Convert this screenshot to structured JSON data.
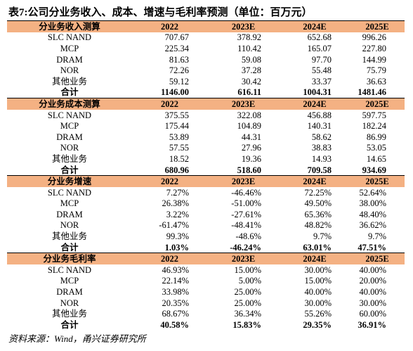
{
  "header": {
    "title": "表7:公司分业务收入、成本、增速与毛利率预测（单位：百万元）"
  },
  "table": {
    "sections": [
      {
        "title": "分业务收入测算",
        "columns": [
          "2022",
          "2023E",
          "2024E",
          "2025E"
        ],
        "rows": [
          [
            "SLC NAND",
            "707.67",
            "378.92",
            "652.68",
            "996.26"
          ],
          [
            "MCP",
            "225.34",
            "110.42",
            "165.07",
            "227.80"
          ],
          [
            "DRAM",
            "81.63",
            "59.08",
            "97.70",
            "144.99"
          ],
          [
            "NOR",
            "72.26",
            "37.28",
            "55.48",
            "75.79"
          ],
          [
            "其他业务",
            "59.12",
            "30.42",
            "33.37",
            "36.63"
          ],
          [
            "合计",
            "1146.00",
            "616.11",
            "1004.31",
            "1481.46"
          ]
        ]
      },
      {
        "title": "分业务成本测算",
        "columns": [
          "2022",
          "2023E",
          "2024E",
          "2025E"
        ],
        "rows": [
          [
            "SLC NAND",
            "375.55",
            "322.08",
            "456.88",
            "597.75"
          ],
          [
            "MCP",
            "175.44",
            "104.89",
            "140.31",
            "182.24"
          ],
          [
            "DRAM",
            "53.89",
            "44.31",
            "58.62",
            "86.99"
          ],
          [
            "NOR",
            "57.55",
            "27.96",
            "38.83",
            "53.05"
          ],
          [
            "其他业务",
            "18.52",
            "19.36",
            "14.93",
            "14.65"
          ],
          [
            "合计",
            "680.96",
            "518.60",
            "709.58",
            "934.69"
          ]
        ]
      },
      {
        "title": "分业务增速",
        "columns": [
          "2022",
          "2023E",
          "2024E",
          "2025E"
        ],
        "rows": [
          [
            "SLC NAND",
            "7.27%",
            "-46.46%",
            "72.25%",
            "52.64%"
          ],
          [
            "MCP",
            "26.38%",
            "-51.00%",
            "49.50%",
            "38.00%"
          ],
          [
            "DRAM",
            "3.22%",
            "-27.61%",
            "65.36%",
            "48.40%"
          ],
          [
            "NOR",
            "-61.47%",
            "-48.41%",
            "48.82%",
            "36.62%"
          ],
          [
            "其他业务",
            "99.3%",
            "-48.6%",
            "9.7%",
            "9.7%"
          ],
          [
            "合计",
            "1.03%",
            "-46.24%",
            "63.01%",
            "47.51%"
          ]
        ]
      },
      {
        "title": "分业务毛利率",
        "columns": [
          "2022",
          "2023E",
          "2024E",
          "2025E"
        ],
        "rows": [
          [
            "SLC NAND",
            "46.93%",
            "15.00%",
            "30.00%",
            "40.00%"
          ],
          [
            "MCP",
            "22.14%",
            "5.00%",
            "15.00%",
            "20.00%"
          ],
          [
            "DRAM",
            "33.98%",
            "25.00%",
            "40.00%",
            "40.00%"
          ],
          [
            "NOR",
            "20.35%",
            "25.00%",
            "30.00%",
            "30.00%"
          ],
          [
            "其他业务",
            "68.67%",
            "36.34%",
            "55.26%",
            "60.00%"
          ],
          [
            "合计",
            "40.58%",
            "15.83%",
            "29.35%",
            "36.91%"
          ]
        ]
      }
    ]
  },
  "footer": {
    "source": "资料来源：Wind，甬兴证券研究所"
  }
}
